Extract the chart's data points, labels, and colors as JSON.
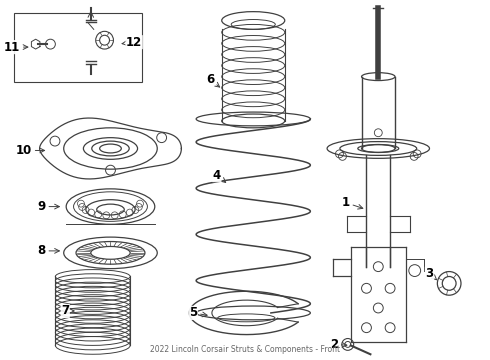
{
  "title": "2022 Lincoln Corsair Struts & Components - Front",
  "background_color": "#ffffff",
  "line_color": "#404040",
  "label_color": "#000000",
  "figsize": [
    4.9,
    3.6
  ],
  "dpi": 100
}
